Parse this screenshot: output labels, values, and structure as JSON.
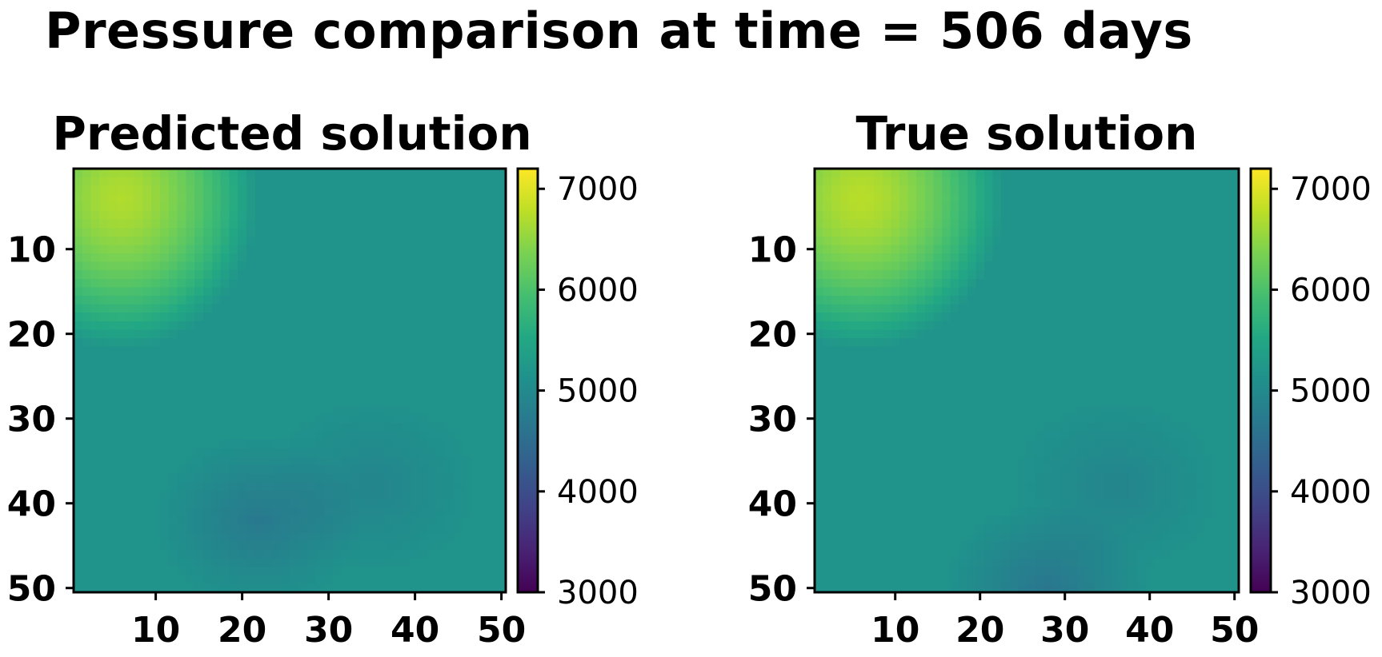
{
  "title": "Pressure comparison at time = 506 days",
  "colormap": "viridis",
  "chart_data": [
    {
      "type": "heatmap",
      "title": "Predicted solution",
      "grid_size": [
        50,
        50
      ],
      "x_ticks": [
        10,
        20,
        30,
        40,
        50
      ],
      "y_ticks": [
        10,
        20,
        30,
        40,
        50
      ],
      "colorbar": {
        "min": 3000,
        "max": 7200,
        "ticks": [
          3000,
          4000,
          5000,
          6000,
          7000
        ],
        "colormap": "viridis"
      },
      "field": {
        "base": 5150,
        "hotspot": {
          "center": [
            6,
            4
          ],
          "value": 6700,
          "region": "top-left",
          "extent_x": 16,
          "extent_y": 18
        },
        "lows": [
          {
            "center": [
              22,
              42
            ],
            "value": 4700
          },
          {
            "center": [
              35,
              38
            ],
            "value": 4900
          }
        ]
      }
    },
    {
      "type": "heatmap",
      "title": "True solution",
      "grid_size": [
        50,
        50
      ],
      "x_ticks": [
        10,
        20,
        30,
        40,
        50
      ],
      "y_ticks": [
        10,
        20,
        30,
        40,
        50
      ],
      "colorbar": {
        "min": 3000,
        "max": 7200,
        "ticks": [
          3000,
          4000,
          5000,
          6000,
          7000
        ],
        "colormap": "viridis"
      },
      "field": {
        "base": 5150,
        "hotspot": {
          "center": [
            6,
            4
          ],
          "value": 6750,
          "region": "top-left",
          "extent_x": 17,
          "extent_y": 18
        },
        "lows": [
          {
            "center": [
              28,
              50
            ],
            "value": 4650
          },
          {
            "center": [
              36,
              38
            ],
            "value": 4900
          }
        ]
      }
    }
  ]
}
